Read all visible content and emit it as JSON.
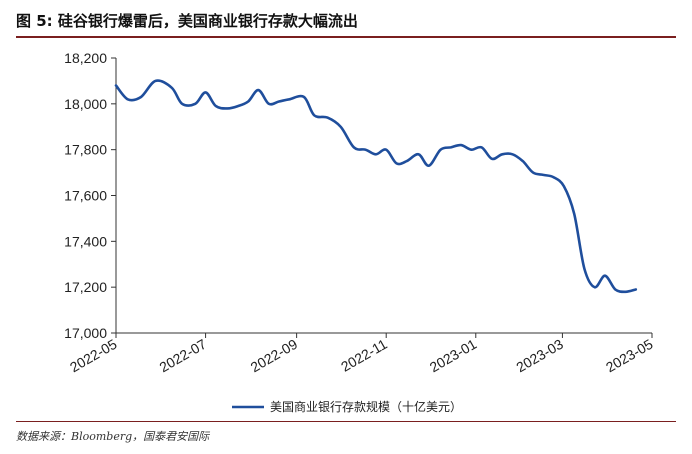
{
  "header": {
    "title": "图 5:  硅谷银行爆雷后，美国商业银行存款大幅流出"
  },
  "source": "数据来源：Bloomberg，国泰君安国际",
  "chart_data": {
    "type": "line",
    "title": "",
    "xlabel": "",
    "ylabel": "",
    "ylim": [
      17000,
      18200
    ],
    "yticks": [
      "17,000",
      "17,200",
      "17,400",
      "17,600",
      "17,800",
      "18,000",
      "18,200"
    ],
    "xticks": [
      "2022-05",
      "2022-07",
      "2022-09",
      "2022-11",
      "2023-01",
      "2023-03",
      "2023-05"
    ],
    "grid": false,
    "legend_position": "bottom-center",
    "series": [
      {
        "name": "美国商业银行存款规模（十亿美元）",
        "color": "#1f4e9c",
        "x": [
          "2022-05-01",
          "2022-05-09",
          "2022-05-18",
          "2022-05-28",
          "2022-06-08",
          "2022-06-15",
          "2022-06-24",
          "2022-07-01",
          "2022-07-08",
          "2022-07-16",
          "2022-07-23",
          "2022-07-30",
          "2022-08-06",
          "2022-08-13",
          "2022-08-20",
          "2022-08-27",
          "2022-09-06",
          "2022-09-13",
          "2022-09-22",
          "2022-10-01",
          "2022-10-10",
          "2022-10-18",
          "2022-10-25",
          "2022-11-01",
          "2022-11-08",
          "2022-11-15",
          "2022-11-23",
          "2022-11-30",
          "2022-12-08",
          "2022-12-15",
          "2022-12-22",
          "2022-12-29",
          "2023-01-05",
          "2023-01-12",
          "2023-01-19",
          "2023-01-26",
          "2023-02-02",
          "2023-02-09",
          "2023-02-16",
          "2023-02-23",
          "2023-03-02",
          "2023-03-09",
          "2023-03-16",
          "2023-03-23",
          "2023-03-30",
          "2023-04-06",
          "2023-04-13",
          "2023-04-20"
        ],
        "values": [
          18080,
          18020,
          18030,
          18100,
          18070,
          18000,
          18000,
          18050,
          17990,
          17980,
          17990,
          18010,
          18060,
          18000,
          18010,
          18020,
          18030,
          17950,
          17940,
          17900,
          17810,
          17800,
          17780,
          17800,
          17740,
          17750,
          17780,
          17730,
          17800,
          17810,
          17820,
          17800,
          17810,
          17760,
          17780,
          17780,
          17750,
          17700,
          17690,
          17680,
          17640,
          17520,
          17280,
          17200,
          17250,
          17190,
          17180,
          17190
        ]
      }
    ]
  }
}
